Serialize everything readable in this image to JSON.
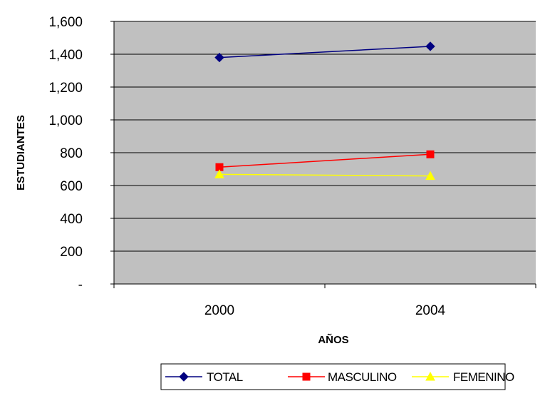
{
  "chart_data": {
    "type": "line",
    "title": "",
    "xlabel": "AÑOS",
    "ylabel": "ESTUDIANTES",
    "categories": [
      "2000",
      "2004"
    ],
    "ylim": [
      0,
      1600
    ],
    "yticks": [
      0,
      200,
      400,
      600,
      800,
      1000,
      1200,
      1400,
      1600
    ],
    "ytick_labels": [
      "-",
      "200",
      "400",
      "600",
      "800",
      "1,000",
      "1,200",
      "1,400",
      "1,600"
    ],
    "grid": true,
    "plot_background": "#c0c0c0",
    "legend_position": "bottom",
    "series": [
      {
        "name": "TOTAL",
        "values": [
          1380,
          1448
        ],
        "color": "#000080",
        "marker": "diamond"
      },
      {
        "name": "MASCULINO",
        "values": [
          712,
          790
        ],
        "color": "#ff0000",
        "marker": "square"
      },
      {
        "name": "FEMENINO",
        "values": [
          668,
          658
        ],
        "color": "#ffff00",
        "marker": "triangle"
      }
    ]
  }
}
